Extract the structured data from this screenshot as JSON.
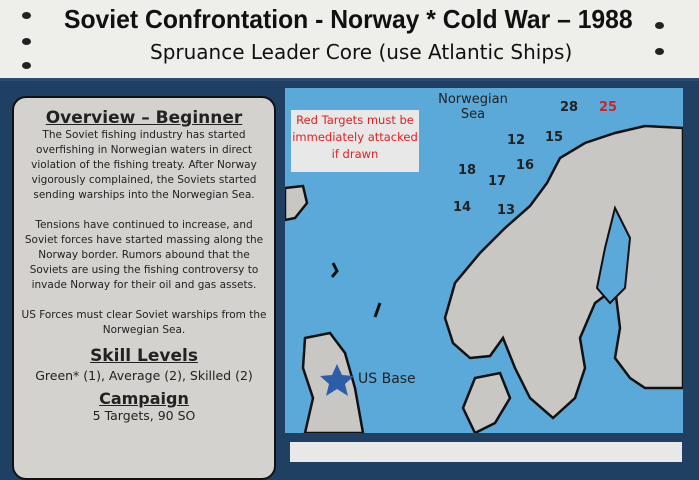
{
  "header": {
    "title": "Soviet Confrontation - Norway  *  Cold War – 1988",
    "subtitle": "Spruance Leader Core (use Atlantic Ships)"
  },
  "overview": {
    "heading": "Overview – Beginner",
    "paragraphs": [
      "The Soviet fishing industry has started overfishing in Norwegian waters in direct violation of the fishing treaty.  After Norway vigorously complained, the Soviets started sending warships into the Norwegian Sea.",
      "Tensions have continued to increase, and Soviet forces have started massing along the Norway border.  Rumors abound that the Soviets are using the fishing controversy to invade Norway for their oil and gas assets.",
      "US Forces must clear Soviet warships from the Norwegian Sea."
    ]
  },
  "skill": {
    "heading": "Skill Levels",
    "text": "Green* (1), Average (2), Skilled (2)"
  },
  "campaign": {
    "heading": "Campaign",
    "text": "5 Targets, 90 SO"
  },
  "map": {
    "note": "Red Targets must be immediately attacked if drawn",
    "sea_label": "Norwegian Sea",
    "base_label": "US Base",
    "targets": [
      {
        "n": "28",
        "red": false
      },
      {
        "n": "25",
        "red": true
      },
      {
        "n": "12",
        "red": false
      },
      {
        "n": "15",
        "red": false
      },
      {
        "n": "18",
        "red": false
      },
      {
        "n": "16",
        "red": false
      },
      {
        "n": "17",
        "red": false
      },
      {
        "n": "14",
        "red": false
      },
      {
        "n": "13",
        "red": false
      }
    ],
    "colors": {
      "sea": "#5ba9d9",
      "land": "#c9c7c4",
      "red": "#d22222"
    }
  }
}
